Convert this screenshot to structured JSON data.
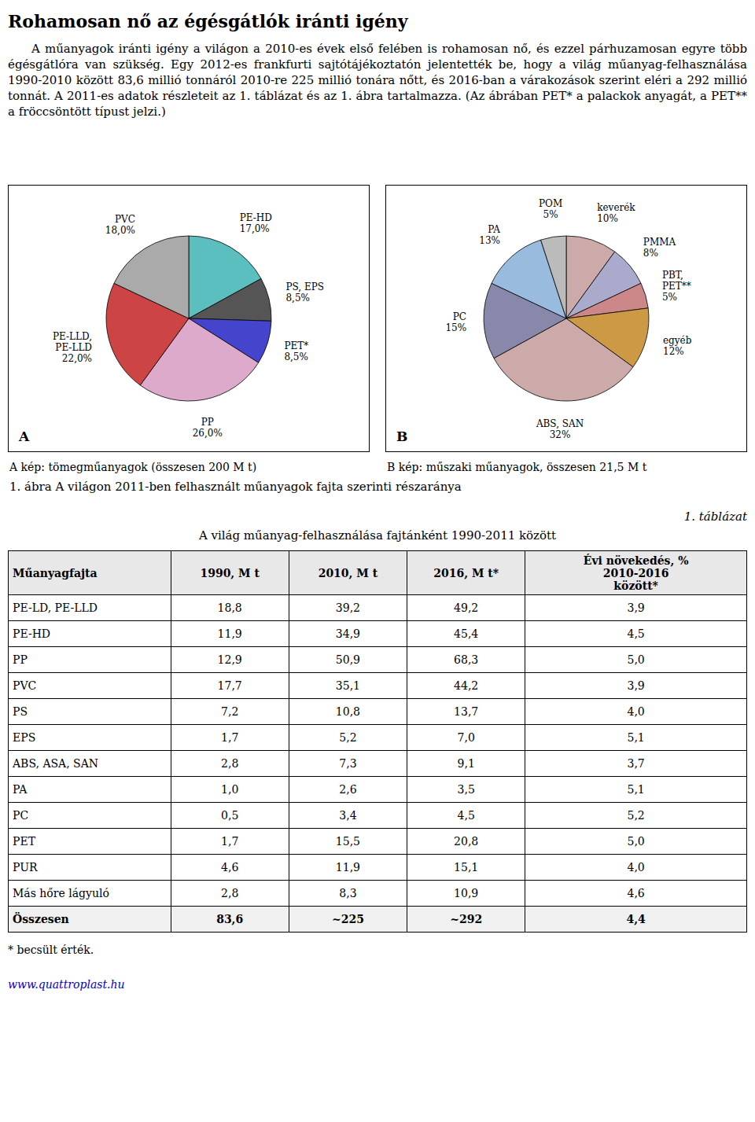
{
  "title": "Rohamosan nő az égésgátlók iránti igény",
  "intro_text": "A műanyagok iránti igény a világon a 2010-es évek első felében is rohamosan nő, és ezzel párhuzamosan egyre több égésgátlóra van szükség. Egy 2012-es frankfurti sajtótájékoztatón jelentették be, hogy a világ műanyag-felhasználása 1990-2010 között 83,6 millió tonnáról 2010-re 225 millió tonára nőtt, és 2016-ban a várakozások szerint eléri a 292 millió tonnát. A 2011-es adatok részleteit az 1. táblázat és az 1. ábra tartalmazza. (Az ábrában PET* a palackok anyagát, a PET** a fröccsöntött típust jelzi.)",
  "chart_data": [
    {
      "type": "pie",
      "title": "A kép: tömegműanyagok (összesen 200 M t)",
      "annotations": [
        "A"
      ],
      "categories": [
        "PE-HD",
        "PS, EPS",
        "PET*",
        "PP",
        "PE-LLD,\nPE-LLD",
        "PVC"
      ],
      "values": [
        17.0,
        8.5,
        8.5,
        26.0,
        22.0,
        18.0
      ],
      "value_labels": [
        "17,0%",
        "8,5%",
        "8,5%",
        "26,0%",
        "22,0%",
        "18,0%"
      ],
      "data_labels": true,
      "colors": [
        "#5bbfbf",
        "#555555",
        "#4444cc",
        "#ddaacc",
        "#cc4444",
        "#aaaaaa"
      ]
    },
    {
      "type": "pie",
      "title": "B kép: műszaki műanyagok, összesen 21,5 M t",
      "annotations": [
        "B"
      ],
      "categories": [
        "keverék",
        "PMMA",
        "PBT,\nPET**",
        "egyéb",
        "ABS, SAN",
        "PC",
        "PA",
        "POM"
      ],
      "values": [
        10,
        8,
        5,
        12,
        32,
        15,
        13,
        5
      ],
      "value_labels": [
        "10%",
        "8%",
        "5%",
        "12%",
        "32%",
        "15%",
        "13%",
        "5%"
      ],
      "data_labels": true,
      "colors": [
        "#ccaaaa",
        "#aaaacc",
        "#cc8888",
        "#cc9944",
        "#ccaaaa",
        "#8888aa",
        "#99bbdd",
        "#bbbbbb"
      ]
    }
  ],
  "figure_caption": "1. ábra A világon 2011-ben felhasznált műanyagok fajta szerinti részaránya",
  "table": {
    "title_right": "1. táblázat",
    "title": "A világ műanyag-felhasználása fajtánként 1990-2011 között",
    "headers": [
      "Műanyagfajta",
      "1990, M t",
      "2010, M t",
      "2016, M t*",
      "Évi növekedés, %\n2010-2016\nközött*"
    ],
    "rows": [
      [
        "PE-LD, PE-LLD",
        "18,8",
        "39,2",
        "49,2",
        "3,9"
      ],
      [
        "PE-HD",
        "11,9",
        "34,9",
        "45,4",
        "4,5"
      ],
      [
        "PP",
        "12,9",
        "50,9",
        "68,3",
        "5,0"
      ],
      [
        "PVC",
        "17,7",
        "35,1",
        "44,2",
        "3,9"
      ],
      [
        "PS",
        "7,2",
        "10,8",
        "13,7",
        "4,0"
      ],
      [
        "EPS",
        "1,7",
        "5,2",
        "7,0",
        "5,1"
      ],
      [
        "ABS, ASA, SAN",
        "2,8",
        "7,3",
        "9,1",
        "3,7"
      ],
      [
        "PA",
        "1,0",
        "2,6",
        "3,5",
        "5,1"
      ],
      [
        "PC",
        "0,5",
        "3,4",
        "4,5",
        "5,2"
      ],
      [
        "PET",
        "1,7",
        "15,5",
        "20,8",
        "5,0"
      ],
      [
        "PUR",
        "4,6",
        "11,9",
        "15,1",
        "4,0"
      ],
      [
        "Más hőre lágyuló",
        "2,8",
        "8,3",
        "10,9",
        "4,6"
      ],
      [
        "Összesen",
        "83,6",
        "~225",
        "~292",
        "4,4"
      ]
    ]
  },
  "footnote": "* becsült érték.",
  "url": "www.quattroplast.hu"
}
